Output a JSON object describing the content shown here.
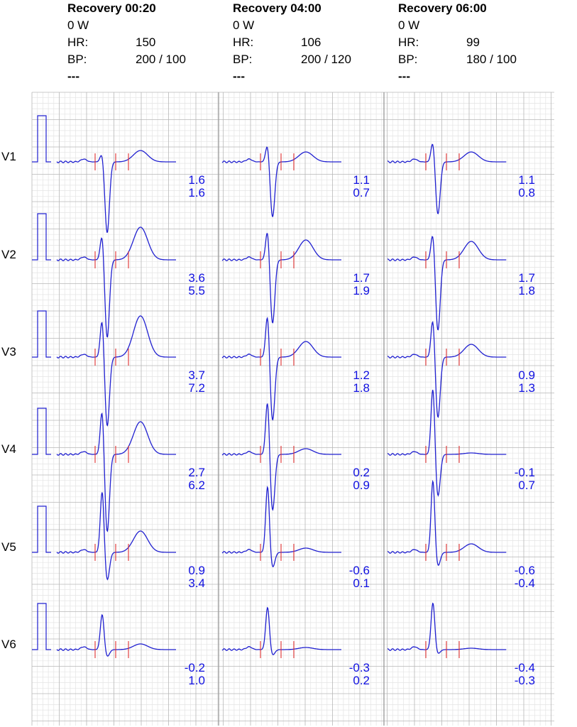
{
  "panels": [
    {
      "title": "Recovery 00:20",
      "load": "0 W",
      "hr_label": "HR:",
      "hr": "150",
      "bp_label": "BP:",
      "bp": "200 / 100",
      "note": "---"
    },
    {
      "title": "Recovery 04:00",
      "load": "0 W",
      "hr_label": "HR:",
      "hr": "106",
      "bp_label": "BP:",
      "bp": "200 / 120",
      "note": "---"
    },
    {
      "title": "Recovery 06:00",
      "load": "0 W",
      "hr_label": "HR:",
      "hr": "99",
      "bp_label": "BP:",
      "bp": "180 / 100",
      "note": "---"
    }
  ],
  "chart_data": {
    "type": "line",
    "leads": [
      "V1",
      "V2",
      "V3",
      "V4",
      "V5",
      "V6"
    ],
    "grid": true,
    "colors": {
      "trace": "#2020d0",
      "marker": "#e03030",
      "grid_minor": "#e4e4e4",
      "grid_major": "#b8b8b8",
      "values": "#1010e0"
    },
    "measurements": [
      [
        [
          "1.6",
          "1.6"
        ],
        [
          "1.1",
          "0.7"
        ],
        [
          "1.1",
          "0.8"
        ]
      ],
      [
        [
          "3.6",
          "5.5"
        ],
        [
          "1.7",
          "1.9"
        ],
        [
          "1.7",
          "1.8"
        ]
      ],
      [
        [
          "3.7",
          "7.2"
        ],
        [
          "1.2",
          "1.8"
        ],
        [
          "0.9",
          "1.3"
        ]
      ],
      [
        [
          "2.7",
          "6.2"
        ],
        [
          "0.2",
          "0.9"
        ],
        [
          "-0.1",
          "0.7"
        ]
      ],
      [
        [
          "0.9",
          "3.4"
        ],
        [
          "-0.6",
          "0.1"
        ],
        [
          "-0.6",
          "-0.4"
        ]
      ],
      [
        [
          "-0.2",
          "1.0"
        ],
        [
          "-0.3",
          "0.2"
        ],
        [
          "-0.4",
          "-0.3"
        ]
      ]
    ]
  }
}
